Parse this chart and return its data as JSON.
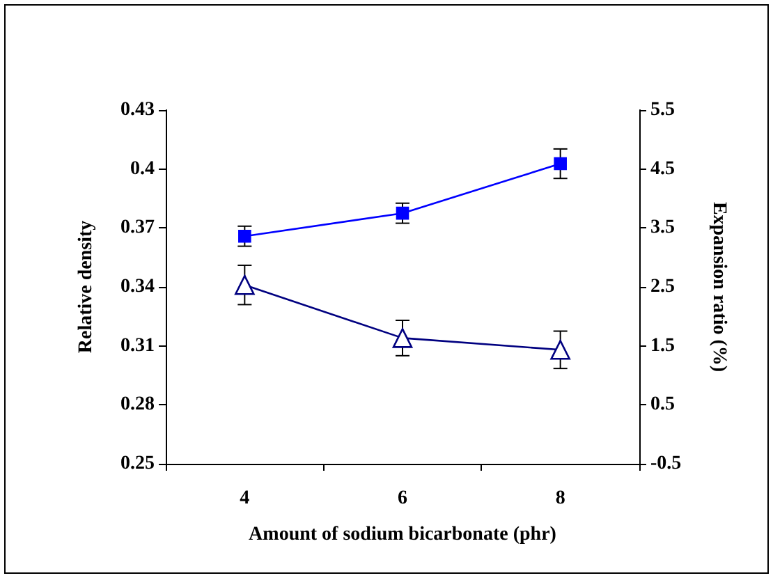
{
  "chart_data": {
    "type": "line",
    "xlabel": "Amount of sodium bicarbonate (phr)",
    "ylabel": "Relative density",
    "y2label": "Expansion ratio (%)",
    "categories": [
      "4",
      "6",
      "8"
    ],
    "series": [
      {
        "color": "#0000ff",
        "marker": "square",
        "axis": "y2",
        "values": [
          3.36,
          3.75,
          4.59
        ],
        "errors": [
          0.17,
          0.17,
          0.25
        ]
      },
      {
        "color": "#000080",
        "marker": "triangle",
        "values": [
          0.341,
          0.314,
          0.308
        ],
        "errors": [
          0.01,
          0.009,
          0.0095
        ]
      }
    ],
    "ylim": [
      0.25,
      0.43
    ],
    "yticks": [
      0.25,
      0.28,
      0.31,
      0.34,
      0.37,
      0.4,
      0.43
    ],
    "y2lim": [
      -0.5,
      5.5
    ],
    "y2ticks": [
      -0.5,
      0.5,
      1.5,
      2.5,
      3.5,
      4.5,
      5.5
    ],
    "grid": false,
    "line_style": "solid"
  }
}
